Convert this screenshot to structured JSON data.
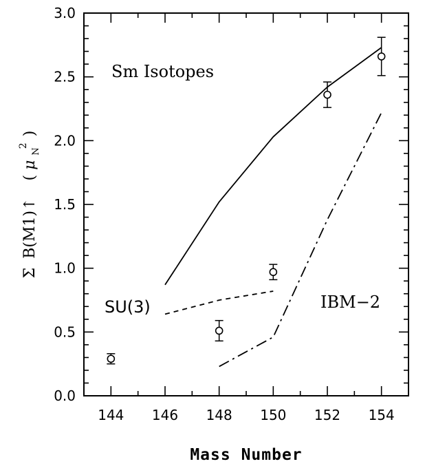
{
  "chart_data": {
    "type": "line",
    "title": "",
    "xlabel": "Mass Number",
    "ylabel_parts": {
      "sigma": "Σ",
      "main": "B(M1)↑",
      "unit_mu": "μ",
      "unit_sub": "N",
      "unit_sup": "2",
      "open": "(",
      "close": ")"
    },
    "xlim": [
      143,
      155
    ],
    "ylim": [
      0.0,
      3.0
    ],
    "x_ticks": [
      144,
      146,
      148,
      150,
      152,
      154
    ],
    "x_tick_labels": [
      "144",
      "146",
      "148",
      "150",
      "152",
      "154"
    ],
    "y_ticks": [
      0.0,
      0.5,
      1.0,
      1.5,
      2.0,
      2.5,
      3.0
    ],
    "y_tick_labels": [
      "0.0",
      "0.5",
      "1.0",
      "1.5",
      "2.0",
      "2.5",
      "3.0"
    ],
    "annotations": {
      "isotopes": "Sm Isotopes",
      "su3": "SU(3)",
      "ibm2": "IBM−2"
    },
    "grid": false,
    "series": [
      {
        "style": "solid",
        "x": [
          146,
          148,
          150,
          152,
          154
        ],
        "y": [
          0.87,
          1.52,
          2.03,
          2.42,
          2.73
        ]
      },
      {
        "name": "SU(3)",
        "style": "dashed",
        "x": [
          146,
          148,
          150
        ],
        "y": [
          0.64,
          0.75,
          0.82
        ]
      },
      {
        "name": "IBM−2",
        "style": "dashdot",
        "x": [
          148,
          150,
          152,
          154
        ],
        "y": [
          0.23,
          0.46,
          1.38,
          2.22
        ]
      },
      {
        "style": "points",
        "x": [
          144,
          148,
          150,
          152,
          154
        ],
        "y": [
          0.29,
          0.51,
          0.97,
          2.36,
          2.66
        ],
        "err": [
          0.04,
          0.08,
          0.06,
          0.1,
          0.15
        ]
      }
    ]
  }
}
